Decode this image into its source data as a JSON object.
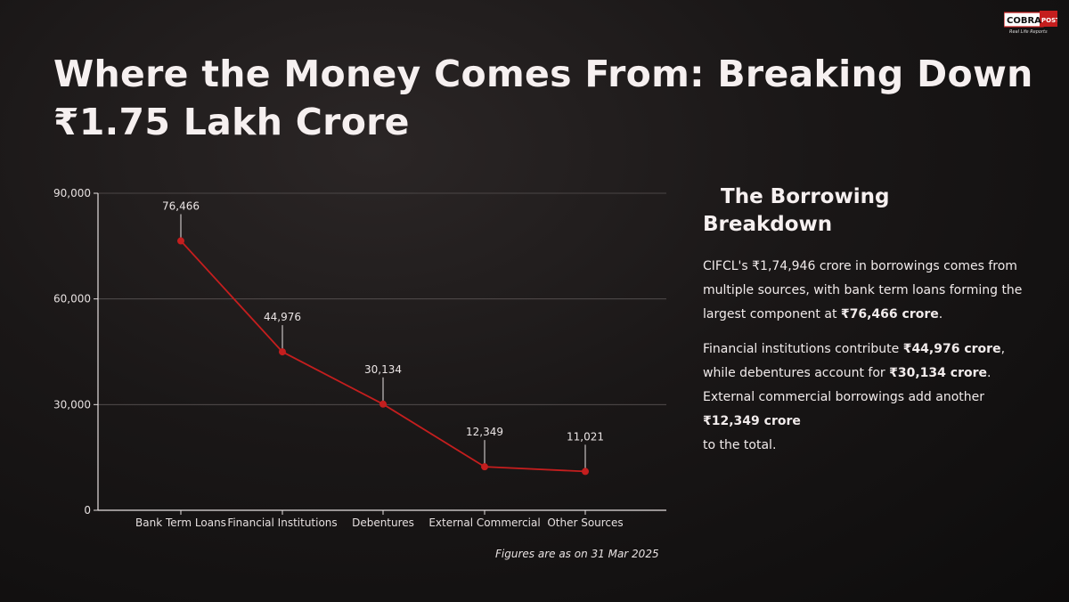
{
  "brand": {
    "logo_text": "COBRAPOST",
    "tagline": "Real Life Reports"
  },
  "title": "Where the Money Comes From: Breaking Down ₹1.75 Lakh Crore",
  "footnote": "Figures are as on 31 Mar 2025",
  "panel": {
    "heading_line1": "The Borrowing",
    "heading_line2": "Breakdown",
    "p1_pre": "CIFCL's ₹1,74,946 crore in borrowings comes from multiple sources, with bank term loans forming the largest component at ",
    "p1_bold": "₹76,466 crore",
    "p1_post": ".",
    "p2_a": "Financial institutions contribute ",
    "p2_b": "₹44,976 crore",
    "p2_c": ", while debentures account for ",
    "p2_d": "₹30,134 crore",
    "p2_e": ". External commercial borrowings add another ",
    "p2_f": "₹12,349 crore",
    "p2_g": "to the total."
  },
  "colors": {
    "line": "#c41e1e",
    "grid": "#5a5454",
    "axis": "#e6e0e0"
  },
  "chart_data": {
    "type": "line",
    "categories": [
      "Bank Term Loans",
      "Financial Institutions",
      "Debentures",
      "External Commercial",
      "Other Sources"
    ],
    "values": [
      76466,
      44976,
      30134,
      12349,
      11021
    ],
    "data_labels": [
      "76,466",
      "44,976",
      "30,134",
      "12,349",
      "11,021"
    ],
    "yticks": [
      0,
      30000,
      60000,
      90000
    ],
    "ytick_labels": [
      "0",
      "30,000",
      "60,000",
      "90,000"
    ],
    "ylim": [
      0,
      90000
    ],
    "grid": true,
    "legend": "none"
  }
}
